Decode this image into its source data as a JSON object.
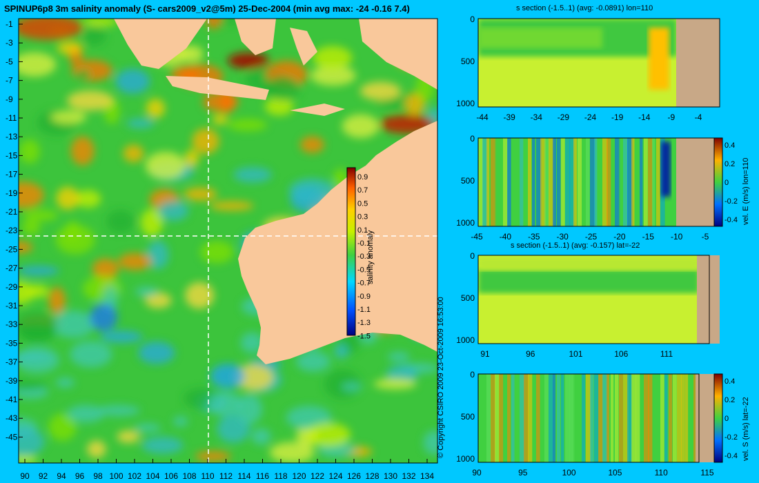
{
  "title": "SPINUP6p8 3m salinity anomaly (S- cars2009_v2@5m) 25-Dec-2004 (min avg max: -24 -0.16 7.4)",
  "copyright": "© Copyright CSIRO 2009   23-Oct-2009 16:53:00",
  "colors": {
    "background": "#00c8ff",
    "land": "#f9c89b",
    "seabed": "#c8a887",
    "ocean_base": "#3cc43c"
  },
  "chart_data": [
    {
      "type": "heatmap",
      "title": "SPINUP6p8 3m salinity anomaly (S- cars2009_v2@5m) 25-Dec-2004 (min avg max: -24 -0.16 7.4)",
      "xlim": [
        90,
        135
      ],
      "ylim": [
        -45,
        0
      ],
      "x_ticks": [
        "90",
        "92",
        "94",
        "96",
        "98",
        "100",
        "102",
        "104",
        "106",
        "108",
        "110",
        "112",
        "114",
        "116",
        "118",
        "120",
        "122",
        "124",
        "126",
        "128",
        "130",
        "132",
        "134"
      ],
      "y_ticks": [
        "-1",
        "-3",
        "-5",
        "-7",
        "-9",
        "-11",
        "-13",
        "-15",
        "-17",
        "-19",
        "-21",
        "-23",
        "-25",
        "-27",
        "-29",
        "-31",
        "-33",
        "-35",
        "-37",
        "-39",
        "-41",
        "-43",
        "-45"
      ],
      "section_lines": {
        "lon": 110,
        "lat": -22
      },
      "colorbar": {
        "label": "salinity anomaly",
        "range": [
          -1.5,
          1.0
        ],
        "ticks": [
          "0.9",
          "0.7",
          "0.5",
          "0.3",
          "0.1",
          "-0.1",
          "-0.3",
          "-0.5",
          "-0.7",
          "-0.9",
          "-1.1",
          "-1.3",
          "-1.5"
        ]
      },
      "stats": {
        "min": -24,
        "avg": -0.16,
        "max": 7.4
      }
    },
    {
      "type": "heatmap",
      "title": "s section (-1.5..1) (avg: -0.0891) lon=110",
      "x_ticks": [
        "-44",
        "-39",
        "-34",
        "-29",
        "-24",
        "-19",
        "-14",
        "-9",
        "-4"
      ],
      "y_ticks": [
        "0",
        "500",
        "1000"
      ],
      "avg": -0.0891
    },
    {
      "type": "heatmap",
      "title": "",
      "x_ticks": [
        "-45",
        "-40",
        "-35",
        "-30",
        "-25",
        "-20",
        "-15",
        "-10",
        "-5"
      ],
      "y_ticks": [
        "0",
        "500",
        "1000"
      ],
      "colorbar": {
        "label": "vel. E (m/s) lon=110",
        "ticks": [
          "0.4",
          "0.2",
          "0",
          "-0.2",
          "-0.4"
        ]
      }
    },
    {
      "type": "heatmap",
      "title": "s section (-1.5..1) (avg: -0.157) lat=-22",
      "x_ticks": [
        "91",
        "96",
        "101",
        "106",
        "111"
      ],
      "y_ticks": [
        "0",
        "500",
        "1000"
      ],
      "avg": -0.157
    },
    {
      "type": "heatmap",
      "title": "",
      "x_ticks": [
        "90",
        "95",
        "100",
        "105",
        "110",
        "115"
      ],
      "y_ticks": [
        "0",
        "500",
        "1000"
      ],
      "colorbar": {
        "label": "vel. S (m/s) lat=-22",
        "ticks": [
          "0.4",
          "0.2",
          "0",
          "-0.2",
          "-0.4"
        ]
      }
    }
  ]
}
